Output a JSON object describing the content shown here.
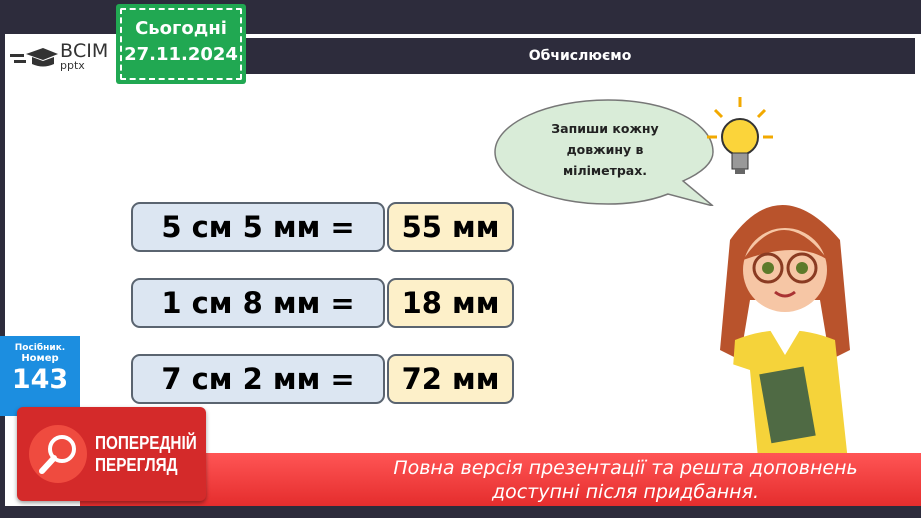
{
  "logo": {
    "line1": "ВСІМ",
    "line2": "pptx"
  },
  "date_badge": {
    "label": "Сьогодні",
    "date": "27.11.2024"
  },
  "header": {
    "title": "Обчислюємо"
  },
  "bubble": {
    "text_lines": [
      "Запиши кожну",
      "довжину в",
      "міліметрах."
    ]
  },
  "rows": [
    {
      "question": "5 см 5 мм =",
      "answer": "55 мм"
    },
    {
      "question": "1 см 8 мм =",
      "answer": "18 мм"
    },
    {
      "question": "7 см 2 мм =",
      "answer": "72 мм"
    }
  ],
  "textbook": {
    "label": "Посібник.",
    "number_label": "Номер",
    "number": "143"
  },
  "preview": {
    "line1": "ПОПЕРЕДНІЙ",
    "line2": "ПЕРЕГЛЯД"
  },
  "banner": {
    "line1": "Повна версія презентації та решта доповнень",
    "line2": "доступні після придбання."
  },
  "colors": {
    "green": "#21a852",
    "dark": "#2d2c3c",
    "question_bg": "#dce6f2",
    "answer_bg": "#fdf0c9",
    "red": "#e52d2d",
    "blue": "#1c8ee0"
  }
}
